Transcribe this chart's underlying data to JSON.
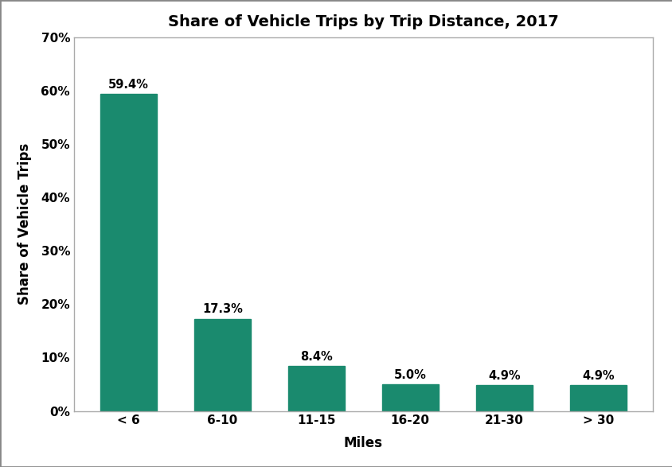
{
  "title": "Share of Vehicle Trips by Trip Distance, 2017",
  "categories": [
    "< 6",
    "6-10",
    "11-15",
    "16-20",
    "21-30",
    "> 30"
  ],
  "values": [
    59.4,
    17.3,
    8.4,
    5.0,
    4.9,
    4.9
  ],
  "labels": [
    "59.4%",
    "17.3%",
    "8.4%",
    "5.0%",
    "4.9%",
    "4.9%"
  ],
  "bar_color": "#1a8a6e",
  "xlabel": "Miles",
  "ylabel": "Share of Vehicle Trips",
  "ylim": [
    0,
    70
  ],
  "yticks": [
    0,
    10,
    20,
    30,
    40,
    50,
    60,
    70
  ],
  "ytick_labels": [
    "0%",
    "10%",
    "20%",
    "30%",
    "40%",
    "50%",
    "60%",
    "70%"
  ],
  "title_fontsize": 14,
  "axis_label_fontsize": 12,
  "tick_fontsize": 11,
  "annotation_fontsize": 10.5,
  "background_color": "#ffffff",
  "figure_background": "#ffffff",
  "spine_color": "#aaaaaa",
  "bar_width": 0.6
}
